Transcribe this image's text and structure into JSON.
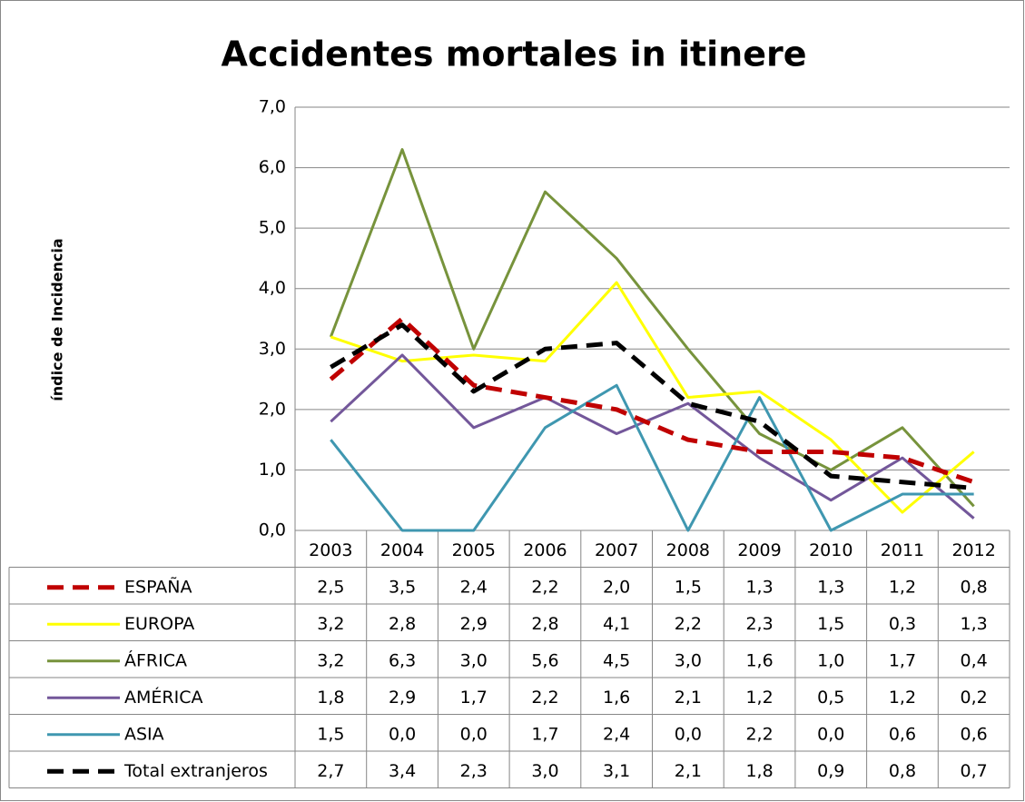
{
  "chart_data": {
    "type": "line",
    "title": "Accidentes mortales in itinere",
    "y_label": "índice de Incidencia",
    "categories": [
      "2003",
      "2004",
      "2005",
      "2006",
      "2007",
      "2008",
      "2009",
      "2010",
      "2011",
      "2012"
    ],
    "ylim": [
      0,
      7
    ],
    "yticks": [
      {
        "value": 0,
        "label": "0,0"
      },
      {
        "value": 1,
        "label": "1,0"
      },
      {
        "value": 2,
        "label": "2,0"
      },
      {
        "value": 3,
        "label": "3,0"
      },
      {
        "value": 4,
        "label": "4,0"
      },
      {
        "value": 5,
        "label": "5,0"
      },
      {
        "value": 6,
        "label": "6,0"
      },
      {
        "value": 7,
        "label": "7,0"
      }
    ],
    "grid": true,
    "series": [
      {
        "name": "ESPAÑA",
        "color": "#c00000",
        "dashed": true,
        "values": [
          2.5,
          3.5,
          2.4,
          2.2,
          2.0,
          1.5,
          1.3,
          1.3,
          1.2,
          0.8
        ],
        "value_labels": [
          "2,5",
          "3,5",
          "2,4",
          "2,2",
          "2,0",
          "1,5",
          "1,3",
          "1,3",
          "1,2",
          "0,8"
        ]
      },
      {
        "name": "EUROPA",
        "color": "#ffff00",
        "dashed": false,
        "values": [
          3.2,
          2.8,
          2.9,
          2.8,
          4.1,
          2.2,
          2.3,
          1.5,
          0.3,
          1.3
        ],
        "value_labels": [
          "3,2",
          "2,8",
          "2,9",
          "2,8",
          "4,1",
          "2,2",
          "2,3",
          "1,5",
          "0,3",
          "1,3"
        ]
      },
      {
        "name": "ÁFRICA",
        "color": "#77933c",
        "dashed": false,
        "values": [
          3.2,
          6.3,
          3.0,
          5.6,
          4.5,
          3.0,
          1.6,
          1.0,
          1.7,
          0.4
        ],
        "value_labels": [
          "3,2",
          "6,3",
          "3,0",
          "5,6",
          "4,5",
          "3,0",
          "1,6",
          "1,0",
          "1,7",
          "0,4"
        ]
      },
      {
        "name": "AMÉRICA",
        "color": "#73579a",
        "dashed": false,
        "values": [
          1.8,
          2.9,
          1.7,
          2.2,
          1.6,
          2.1,
          1.2,
          0.5,
          1.2,
          0.2
        ],
        "value_labels": [
          "1,8",
          "2,9",
          "1,7",
          "2,2",
          "1,6",
          "2,1",
          "1,2",
          "0,5",
          "1,2",
          "0,2"
        ]
      },
      {
        "name": "ASIA",
        "color": "#3f97b0",
        "dashed": false,
        "values": [
          1.5,
          0.0,
          0.0,
          1.7,
          2.4,
          0.0,
          2.2,
          0.0,
          0.6,
          0.6
        ],
        "value_labels": [
          "1,5",
          "0,0",
          "0,0",
          "1,7",
          "2,4",
          "0,0",
          "2,2",
          "0,0",
          "0,6",
          "0,6"
        ]
      },
      {
        "name": "Total extranjeros",
        "color": "#000000",
        "dashed": true,
        "values": [
          2.7,
          3.4,
          2.3,
          3.0,
          3.1,
          2.1,
          1.8,
          0.9,
          0.8,
          0.7
        ],
        "value_labels": [
          "2,7",
          "3,4",
          "2,3",
          "3,0",
          "3,1",
          "2,1",
          "1,8",
          "0,9",
          "0,8",
          "0,7"
        ]
      }
    ]
  }
}
